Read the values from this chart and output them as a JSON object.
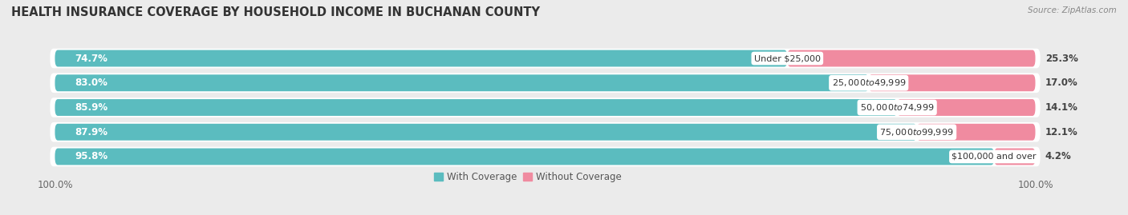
{
  "title": "HEALTH INSURANCE COVERAGE BY HOUSEHOLD INCOME IN BUCHANAN COUNTY",
  "source": "Source: ZipAtlas.com",
  "categories": [
    "Under $25,000",
    "$25,000 to $49,999",
    "$50,000 to $74,999",
    "$75,000 to $99,999",
    "$100,000 and over"
  ],
  "with_coverage": [
    74.7,
    83.0,
    85.9,
    87.9,
    95.8
  ],
  "without_coverage": [
    25.3,
    17.0,
    14.1,
    12.1,
    4.2
  ],
  "color_with": "#5bbcbf",
  "color_without": "#f08ba0",
  "bg_color": "#ebebeb",
  "bar_bg_color": "#ffffff",
  "bar_height": 0.68,
  "xlim_data": 105,
  "legend_label_with": "With Coverage",
  "legend_label_without": "Without Coverage",
  "title_fontsize": 10.5,
  "label_fontsize": 8.5,
  "tick_fontsize": 8.5,
  "cat_fontsize": 8.0
}
